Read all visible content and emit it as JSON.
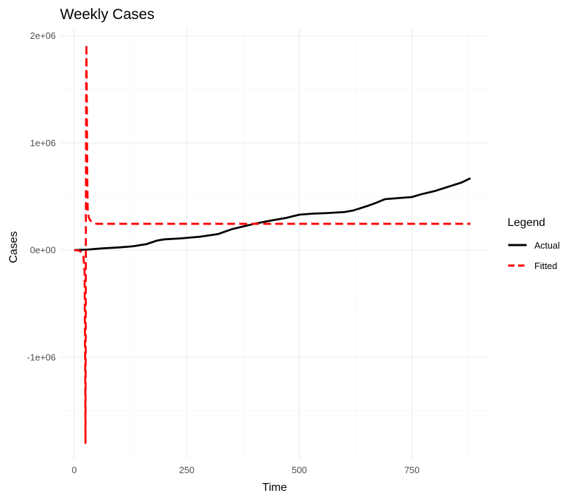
{
  "chart_data": {
    "type": "line",
    "title": "Weekly Cases",
    "xlabel": "Time",
    "ylabel": "Cases",
    "xlim": [
      -30,
      920
    ],
    "ylim": [
      -1950000,
      2070000
    ],
    "x_ticks": [
      0,
      250,
      500,
      750
    ],
    "x_tick_labels": [
      "0",
      "250",
      "500",
      "750"
    ],
    "y_ticks": [
      -1000000,
      0,
      1000000,
      2000000
    ],
    "y_tick_labels": [
      "-1e+06",
      "0e+00",
      "1e+06",
      "2e+06"
    ],
    "grid": true,
    "legend": {
      "title": "Legend",
      "position": "right"
    },
    "series": [
      {
        "name": "Actual",
        "color": "#000000",
        "style": "solid",
        "x": [
          0,
          30,
          60,
          100,
          130,
          160,
          185,
          200,
          240,
          280,
          320,
          350,
          400,
          430,
          470,
          500,
          530,
          560,
          600,
          620,
          650,
          670,
          690,
          720,
          750,
          770,
          800,
          830,
          860,
          880
        ],
        "y": [
          0,
          5000,
          15000,
          25000,
          35000,
          55000,
          90000,
          100000,
          110000,
          125000,
          150000,
          195000,
          245000,
          270000,
          300000,
          330000,
          340000,
          345000,
          355000,
          370000,
          410000,
          440000,
          475000,
          485000,
          495000,
          520000,
          550000,
          590000,
          630000,
          670000
        ]
      },
      {
        "name": "Fitted",
        "color": "#ff0000",
        "style": "dashed",
        "x": [
          0,
          10,
          15,
          20,
          23,
          24.5,
          25,
          25.5,
          26,
          26.5,
          27,
          28,
          29,
          30,
          32,
          35,
          40,
          45,
          50,
          100,
          200,
          300,
          400,
          500,
          600,
          700,
          800,
          880
        ],
        "y": [
          0,
          -5000,
          -15000,
          -40000,
          -200000,
          -1200000,
          -1800000,
          -800000,
          500000,
          1500000,
          1920000,
          1400000,
          700000,
          380000,
          310000,
          280000,
          260000,
          250000,
          245000,
          245000,
          245000,
          245000,
          245000,
          245000,
          245000,
          245000,
          245000,
          245000
        ]
      }
    ]
  }
}
